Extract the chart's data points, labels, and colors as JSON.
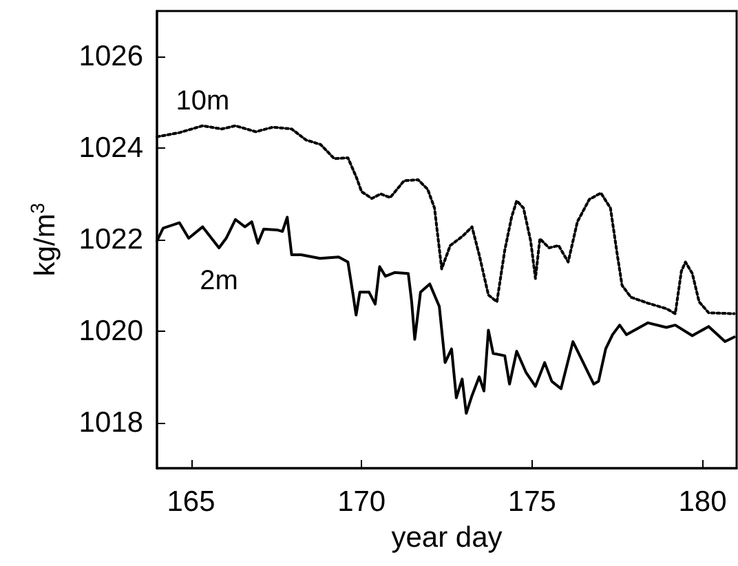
{
  "chart_data": {
    "type": "line",
    "xlabel": "year day",
    "ylabel": "kg/m$^{3}$",
    "xlim": [
      164,
      181
    ],
    "xticks": [
      165,
      170,
      175,
      180
    ],
    "ylim": [
      1017,
      1027
    ],
    "yticks": [
      1018,
      1020,
      1022,
      1024,
      1026
    ],
    "grid": false,
    "legend": false,
    "marker": "none",
    "series": [
      {
        "name": "10m",
        "color": "#000000",
        "line_style": "dotted",
        "x": [
          164.0,
          164.66,
          165.34,
          165.9,
          166.3,
          166.9,
          167.4,
          167.95,
          168.37,
          168.8,
          169.2,
          169.6,
          169.85,
          170.0,
          170.3,
          170.56,
          170.84,
          171.25,
          171.66,
          171.94,
          172.14,
          172.35,
          172.6,
          172.97,
          173.24,
          173.45,
          173.72,
          173.97,
          174.2,
          174.4,
          174.55,
          174.75,
          174.96,
          175.1,
          175.23,
          175.5,
          175.78,
          176.06,
          176.33,
          176.68,
          177.02,
          177.3,
          177.5,
          177.64,
          177.9,
          178.4,
          178.94,
          179.2,
          179.38,
          179.5,
          179.7,
          179.9,
          180.18,
          180.93
        ],
        "values": [
          1024.25,
          1024.34,
          1024.49,
          1024.42,
          1024.49,
          1024.36,
          1024.46,
          1024.42,
          1024.18,
          1024.08,
          1023.77,
          1023.79,
          1023.36,
          1023.05,
          1022.9,
          1023.0,
          1022.92,
          1023.29,
          1023.31,
          1023.1,
          1022.69,
          1021.36,
          1021.87,
          1022.08,
          1022.28,
          1021.67,
          1020.79,
          1020.64,
          1021.77,
          1022.49,
          1022.85,
          1022.69,
          1021.97,
          1021.15,
          1022.02,
          1021.82,
          1021.87,
          1021.51,
          1022.39,
          1022.88,
          1023.02,
          1022.69,
          1021.67,
          1021.0,
          1020.74,
          1020.61,
          1020.49,
          1020.38,
          1021.31,
          1021.51,
          1021.26,
          1020.64,
          1020.4,
          1020.38
        ]
      },
      {
        "name": "2m",
        "color": "#000000",
        "line_style": "solid",
        "x": [
          164.0,
          164.18,
          164.66,
          164.93,
          165.34,
          165.82,
          166.03,
          166.3,
          166.58,
          166.78,
          166.96,
          167.13,
          167.54,
          167.68,
          167.82,
          167.95,
          168.23,
          168.78,
          169.33,
          169.6,
          169.74,
          169.84,
          169.95,
          170.22,
          170.4,
          170.53,
          170.7,
          170.97,
          171.37,
          171.47,
          171.56,
          171.73,
          172.0,
          172.28,
          172.45,
          172.64,
          172.78,
          172.95,
          173.07,
          173.24,
          173.45,
          173.59,
          173.72,
          173.86,
          174.2,
          174.34,
          174.55,
          174.82,
          175.1,
          175.37,
          175.58,
          175.85,
          176.2,
          176.54,
          176.81,
          176.95,
          177.16,
          177.36,
          177.57,
          177.77,
          178.4,
          178.94,
          179.2,
          179.7,
          180.18,
          180.66,
          180.93
        ],
        "values": [
          1021.97,
          1022.25,
          1022.37,
          1022.03,
          1022.28,
          1021.82,
          1022.03,
          1022.44,
          1022.28,
          1022.39,
          1021.92,
          1022.23,
          1022.21,
          1022.18,
          1022.49,
          1021.67,
          1021.67,
          1021.59,
          1021.62,
          1021.51,
          1020.85,
          1020.35,
          1020.85,
          1020.85,
          1020.59,
          1021.41,
          1021.2,
          1021.28,
          1021.26,
          1020.64,
          1019.82,
          1020.85,
          1021.03,
          1020.54,
          1019.31,
          1019.61,
          1018.54,
          1018.95,
          1018.2,
          1018.59,
          1019.0,
          1018.69,
          1020.02,
          1019.51,
          1019.46,
          1018.84,
          1019.56,
          1019.1,
          1018.79,
          1019.31,
          1018.9,
          1018.74,
          1019.77,
          1019.25,
          1018.84,
          1018.9,
          1019.61,
          1019.92,
          1020.13,
          1019.92,
          1020.18,
          1020.08,
          1020.13,
          1019.9,
          1020.1,
          1019.77,
          1019.87
        ]
      }
    ]
  }
}
